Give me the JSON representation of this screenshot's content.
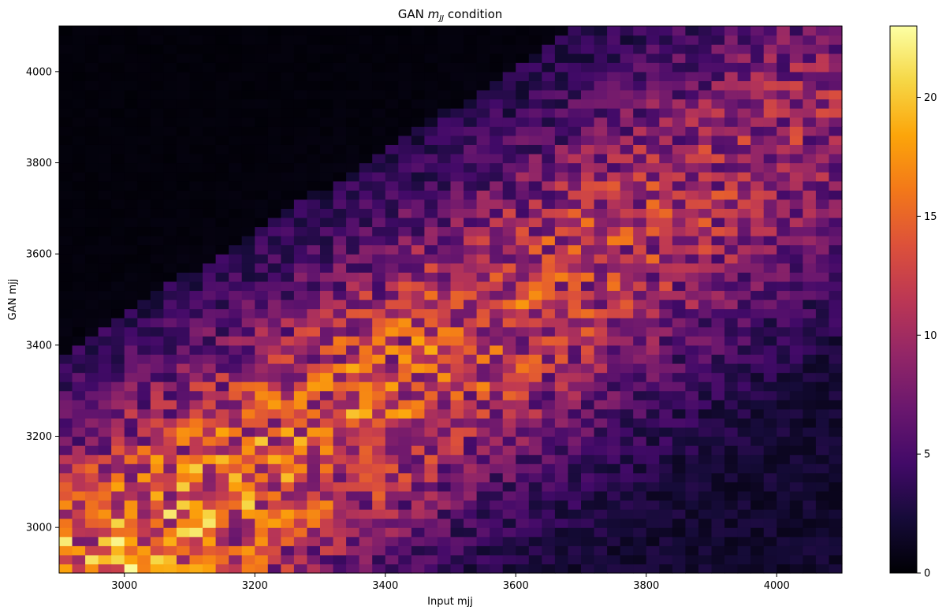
{
  "chart_data": {
    "type": "heatmap",
    "title": "GAN",
    "title_math": "m",
    "title_sub": "JJ",
    "title_rest": "condition",
    "xlabel": "Input mjj",
    "ylabel": "GAN mjj",
    "xlim": [
      2900,
      4100
    ],
    "ylim": [
      2900,
      4100
    ],
    "xticks": [
      3000,
      3200,
      3400,
      3600,
      3800,
      4000
    ],
    "yticks": [
      3000,
      3200,
      3400,
      3600,
      3800,
      4000
    ],
    "bins": [
      60,
      60
    ],
    "colormap": "inferno",
    "colorbar": {
      "min": 0,
      "max": 23,
      "ticks": [
        0,
        5,
        10,
        15,
        20
      ]
    },
    "description": "2D histogram of GAN-generated mjj vs input mjj; density concentrated along band from (2900-3400, 2900-3200) rising to (3600-4100, 3500-4100); counts up to ~23 near input 3000, GAN 2900"
  }
}
